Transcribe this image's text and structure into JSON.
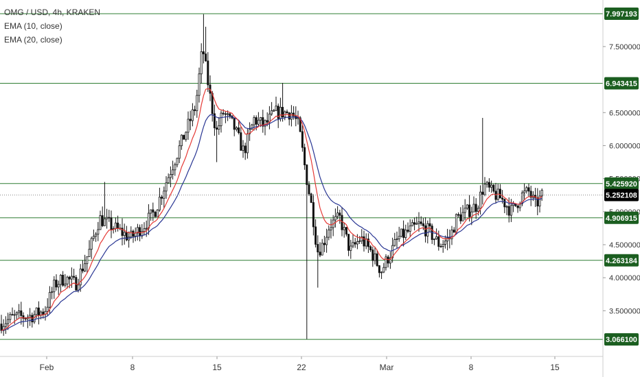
{
  "legend": {
    "symbol": "OMG / USD, 4h, KRAKEN",
    "ema10": "EMA (10, close)",
    "ema20": "EMA (20, close)"
  },
  "colors": {
    "candle": "#111111",
    "ema10": "#e53935",
    "ema20": "#283593",
    "level_line": "#2e7d32",
    "level_label_bg": "#1b5e20",
    "last_price_bg": "#000000",
    "axis_text": "#333333"
  },
  "chart_data": {
    "type": "candlestick",
    "title": "OMG / USD, 4h, KRAKEN",
    "ylim": [
      3.0,
      8.0
    ],
    "y_ticks": [
      "3.500000",
      "4.000000",
      "4.500000",
      "5.000000",
      "5.500000",
      "6.000000",
      "6.500000",
      "7.500000"
    ],
    "x_ticks": [
      "Feb",
      "8",
      "15",
      "22",
      "Mar",
      "8",
      "15"
    ],
    "last_price": "5.252108",
    "horizontal_levels": [
      "7.997193",
      "6.943415",
      "5.425920",
      "4.906915",
      "4.263184",
      "3.066100"
    ],
    "indicators": [
      "EMA (10, close)",
      "EMA (20, close)"
    ],
    "price_path_anchors": [
      [
        0,
        3.3
      ],
      [
        20,
        3.4
      ],
      [
        45,
        3.42
      ],
      [
        65,
        3.5
      ],
      [
        80,
        3.9
      ],
      [
        95,
        4.0
      ],
      [
        110,
        3.9
      ],
      [
        130,
        4.4
      ],
      [
        145,
        4.9
      ],
      [
        160,
        4.8
      ],
      [
        175,
        4.7
      ],
      [
        190,
        4.6
      ],
      [
        210,
        4.8
      ],
      [
        225,
        5.0
      ],
      [
        240,
        5.4
      ],
      [
        255,
        5.8
      ],
      [
        270,
        6.2
      ],
      [
        285,
        6.6
      ],
      [
        295,
        7.5
      ],
      [
        305,
        6.8
      ],
      [
        315,
        6.2
      ],
      [
        325,
        6.5
      ],
      [
        340,
        6.3
      ],
      [
        355,
        5.9
      ],
      [
        370,
        6.4
      ],
      [
        385,
        6.3
      ],
      [
        400,
        6.5
      ],
      [
        415,
        6.5
      ],
      [
        425,
        6.5
      ],
      [
        435,
        6.3
      ],
      [
        445,
        5.6
      ],
      [
        455,
        5.0
      ],
      [
        462,
        4.4
      ],
      [
        470,
        4.5
      ],
      [
        480,
        4.8
      ],
      [
        495,
        4.9
      ],
      [
        510,
        4.4
      ],
      [
        525,
        4.6
      ],
      [
        540,
        4.4
      ],
      [
        555,
        4.1
      ],
      [
        565,
        4.3
      ],
      [
        580,
        4.6
      ],
      [
        595,
        4.7
      ],
      [
        610,
        4.8
      ],
      [
        625,
        4.7
      ],
      [
        640,
        4.5
      ],
      [
        655,
        4.6
      ],
      [
        665,
        4.9
      ],
      [
        680,
        5.0
      ],
      [
        695,
        5.1
      ],
      [
        705,
        5.4
      ],
      [
        715,
        5.3
      ],
      [
        730,
        5.2
      ],
      [
        745,
        5.0
      ],
      [
        760,
        5.25
      ],
      [
        770,
        5.3
      ],
      [
        780,
        5.1
      ],
      [
        790,
        5.25
      ]
    ]
  }
}
